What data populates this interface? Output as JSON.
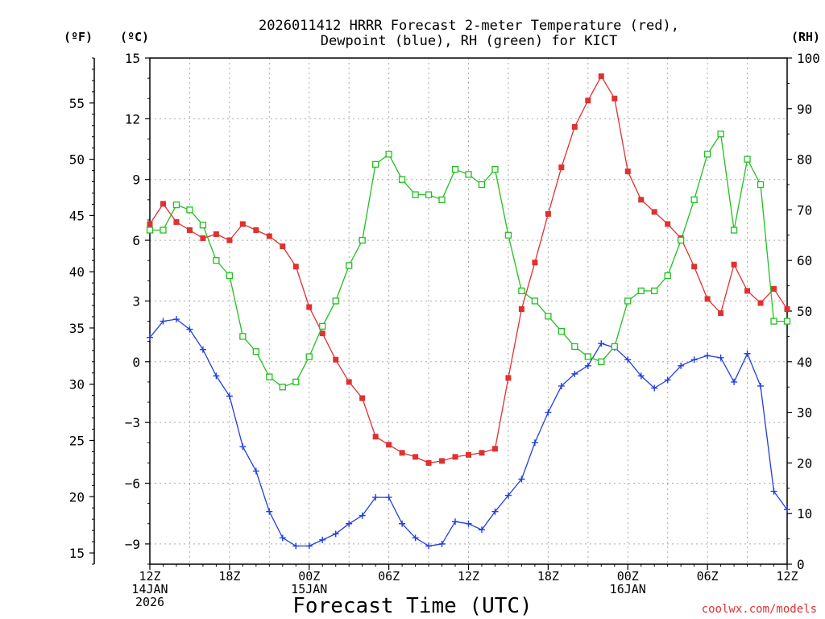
{
  "chart_data": {
    "type": "line",
    "title_line1": "2026011412 HRRR Forecast 2-meter Temperature (red),",
    "title_line2": "Dewpoint (blue), RH (green) for KICT",
    "xlabel": "Forecast Time (UTC)",
    "credit": "coolwx.com/models",
    "left_outer_unit": "(ºF)",
    "left_inner_unit": "(ºC)",
    "right_unit": "(RH)",
    "x_range_hours": [
      0,
      48
    ],
    "celsius_range": [
      -10,
      15
    ],
    "rh_range": [
      0,
      100
    ],
    "fahrenheit_range": [
      14,
      59
    ],
    "fahrenheit_ticks": [
      "15",
      "20",
      "25",
      "30",
      "35",
      "40",
      "45",
      "50",
      "55"
    ],
    "celsius_ticks": [
      "−9",
      "−6",
      "−3",
      "0",
      "3",
      "6",
      "9",
      "12",
      "15"
    ],
    "rh_ticks": [
      "0",
      "10",
      "20",
      "30",
      "40",
      "50",
      "60",
      "70",
      "80",
      "90",
      "100"
    ],
    "x_ticks": [
      {
        "hour": 0,
        "lines": [
          "12Z",
          "14JAN",
          "2026"
        ]
      },
      {
        "hour": 6,
        "lines": [
          "18Z"
        ]
      },
      {
        "hour": 12,
        "lines": [
          "00Z",
          "15JAN"
        ]
      },
      {
        "hour": 18,
        "lines": [
          "06Z"
        ]
      },
      {
        "hour": 24,
        "lines": [
          "12Z"
        ]
      },
      {
        "hour": 30,
        "lines": [
          "18Z"
        ]
      },
      {
        "hour": 36,
        "lines": [
          "00Z",
          "16JAN"
        ]
      },
      {
        "hour": 42,
        "lines": [
          "06Z"
        ]
      },
      {
        "hour": 48,
        "lines": [
          "12Z"
        ]
      }
    ],
    "grid": true,
    "series": [
      {
        "key": "temperature",
        "axis": "celsius",
        "color": "#e03030",
        "marker": "filled-square",
        "values": [
          6.8,
          7.8,
          6.9,
          6.5,
          6.1,
          6.3,
          6.0,
          6.8,
          6.5,
          6.2,
          5.7,
          4.7,
          2.7,
          1.4,
          0.1,
          -1.0,
          -1.8,
          -3.7,
          -4.1,
          -4.5,
          -4.7,
          -5.0,
          -4.9,
          -4.7,
          -4.6,
          -4.5,
          -4.3,
          -0.8,
          2.6,
          4.9,
          7.3,
          9.6,
          11.6,
          12.9,
          14.1,
          13.0,
          9.4,
          8.0,
          7.4,
          6.8,
          6.1,
          4.7,
          3.1,
          2.4,
          4.8,
          3.5,
          2.9,
          3.6,
          2.6
        ]
      },
      {
        "key": "dewpoint",
        "axis": "celsius",
        "color": "#2040e0",
        "marker": "plus",
        "values": [
          1.2,
          2.0,
          2.1,
          1.6,
          0.6,
          -0.7,
          -1.7,
          -4.2,
          -5.4,
          -7.4,
          -8.7,
          -9.1,
          -9.1,
          -8.8,
          -8.5,
          -8.0,
          -7.6,
          -6.7,
          -6.7,
          -8.0,
          -8.7,
          -9.1,
          -9.0,
          -7.9,
          -8.0,
          -8.3,
          -7.4,
          -6.6,
          -5.8,
          -4.0,
          -2.5,
          -1.2,
          -0.6,
          -0.2,
          0.9,
          0.7,
          0.1,
          -0.7,
          -1.3,
          -0.9,
          -0.2,
          0.1,
          0.3,
          0.2,
          -1.0,
          0.4,
          -1.2,
          -6.4,
          -7.3
        ]
      },
      {
        "key": "rh",
        "axis": "rh",
        "color": "#20c020",
        "marker": "open-square",
        "values": [
          66,
          66,
          71,
          70,
          67,
          60,
          57,
          45,
          42,
          37,
          35,
          36,
          41,
          47,
          52,
          59,
          64,
          79,
          81,
          76,
          73,
          73,
          72,
          78,
          77,
          75,
          78,
          65,
          54,
          52,
          49,
          46,
          43,
          41,
          40,
          43,
          52,
          54,
          54,
          57,
          64,
          72,
          81,
          85,
          66,
          80,
          75,
          48,
          48
        ]
      }
    ]
  }
}
